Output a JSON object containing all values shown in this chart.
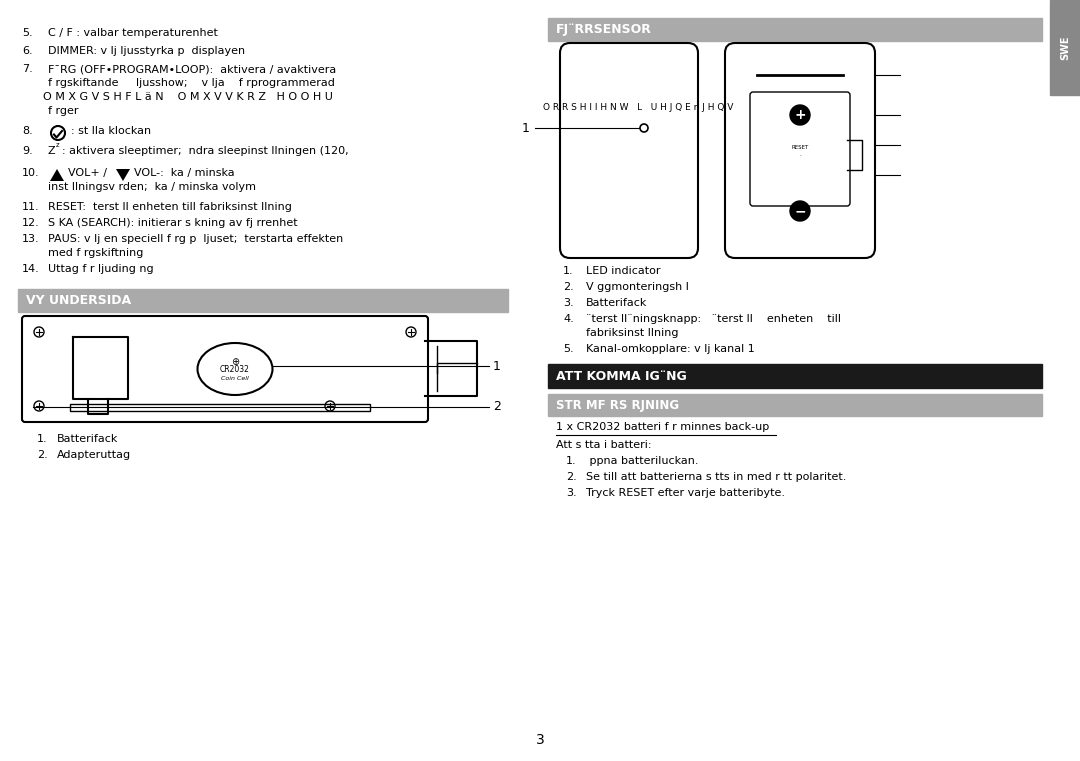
{
  "page_bg": "#ffffff",
  "fs": 8.0,
  "fs_small": 6.5,
  "page_width": 10.8,
  "page_height": 7.61,
  "vy_title": "VY UNDERSIDA",
  "fjr_title": "FJ¨RRSENSOR",
  "att_title": "ATT KOMMA IG¨NG",
  "str_title": "STR MF RS RJNING",
  "cr_text": "1 x CR2032 batteri f r minnes back-up",
  "att_text": "Att s tta i batteri:",
  "att_items": [
    " ppna batteriluckan.",
    "Se till att batterierna s tts in med r tt polaritet.",
    "Tryck RESET efter varje batteribyte."
  ],
  "fjr_items": [
    "LED indicator",
    "V ggmonteringsh l",
    "Batterifack",
    "¨terst ll¨ningsknapp:   ¨terst ll   enheten   till\n    fabriksinst llning",
    "Kanal-omkopplare: v lj kanal 1"
  ],
  "page_num": "3",
  "swe_label": "SWE"
}
